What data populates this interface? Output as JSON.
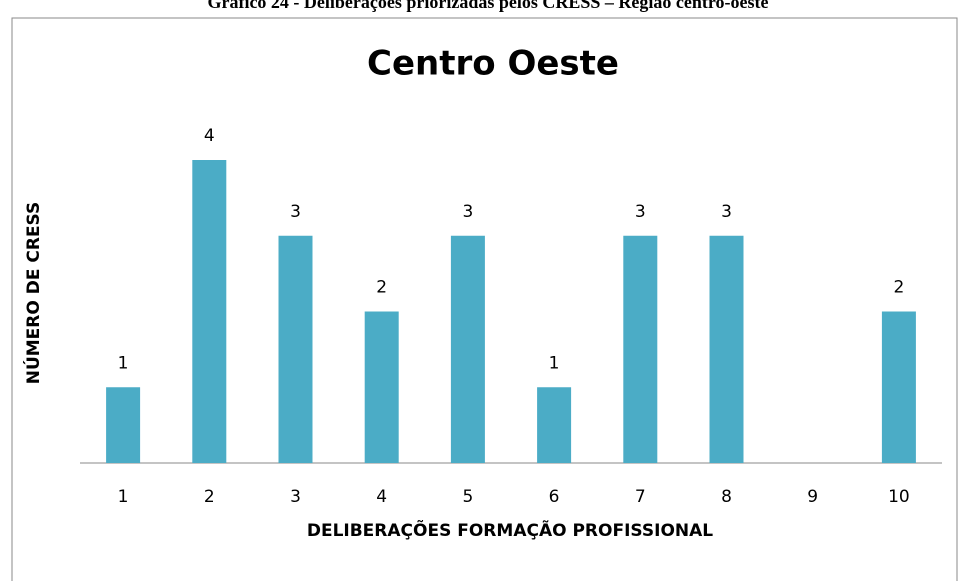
{
  "caption": "Gráfico 24 - Deliberações priorizadas pelos CRESS – Região centro-oeste",
  "chart_data": {
    "type": "bar",
    "title": "Centro Oeste",
    "x_label": "DELIBERAÇÕES FORMAÇÃO PROFISSIONAL",
    "y_label": "NÚMERO DE CRESS",
    "categories": [
      "1",
      "2",
      "3",
      "4",
      "5",
      "6",
      "7",
      "8",
      "9",
      "10"
    ],
    "values": [
      1,
      4,
      3,
      2,
      3,
      1,
      3,
      3,
      0,
      2
    ],
    "value_labels": [
      "1",
      "4",
      "3",
      "2",
      "3",
      "1",
      "3",
      "3",
      null,
      "2"
    ],
    "color": "#4bacc6",
    "ylim": [
      0,
      4
    ]
  }
}
